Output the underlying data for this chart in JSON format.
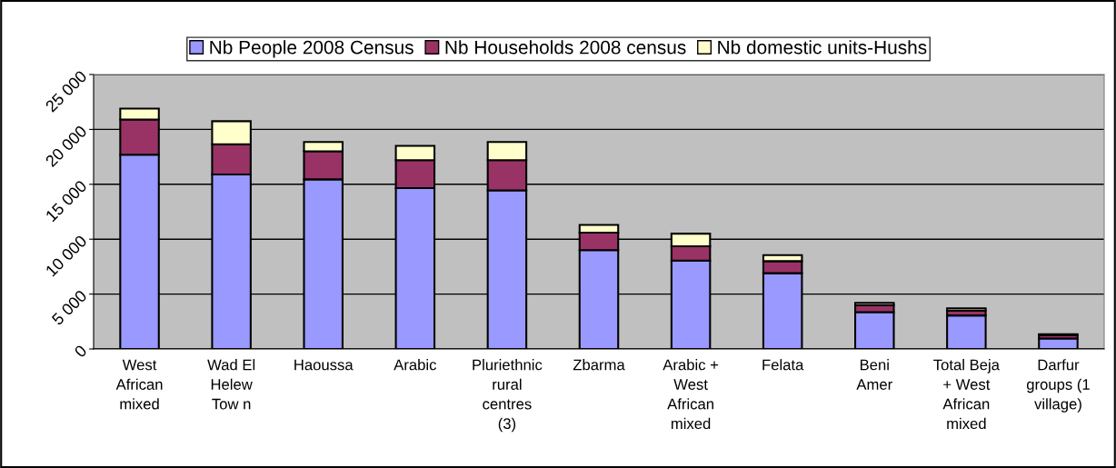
{
  "chart_data": {
    "type": "bar",
    "stacked": true,
    "categories": [
      "West\nAfrican\nmixed",
      "Wad El\nHelew\nTow n",
      "Haoussa",
      "Arabic",
      "Pluriethnic\nrural\ncentres\n(3)",
      "Zbarma",
      "Arabic +\nWest\nAfrican\nmixed",
      "Felata",
      "Beni\nAmer",
      "Total Beja\n+ West\nAfrican\nmixed",
      "Darfur\ngroups (1\nvillage)"
    ],
    "series": [
      {
        "name": "Nb People 2008 Census",
        "color": "#9999ff",
        "values": [
          17700,
          15900,
          15450,
          14650,
          14450,
          9000,
          8050,
          6900,
          3350,
          3050,
          950
        ]
      },
      {
        "name": "Nb Households 2008 census",
        "color": "#993366",
        "values": [
          3200,
          2750,
          2550,
          2550,
          2750,
          1600,
          1300,
          1100,
          650,
          450,
          300
        ]
      },
      {
        "name": "Nb domestic units-Hushs",
        "color": "#ffffcc",
        "values": [
          1000,
          2100,
          850,
          1300,
          1650,
          700,
          1150,
          550,
          200,
          200,
          100
        ]
      }
    ],
    "ylim": [
      0,
      25000
    ],
    "yticks": [
      0,
      {
        "value": 5000,
        "label": "5 000"
      },
      {
        "value": 10000,
        "label": "10 000"
      },
      {
        "value": 15000,
        "label": "15 000"
      },
      {
        "value": 20000,
        "label": "20 000"
      },
      {
        "value": 25000,
        "label": "25 000"
      }
    ],
    "grid": "y",
    "legend": "top"
  }
}
